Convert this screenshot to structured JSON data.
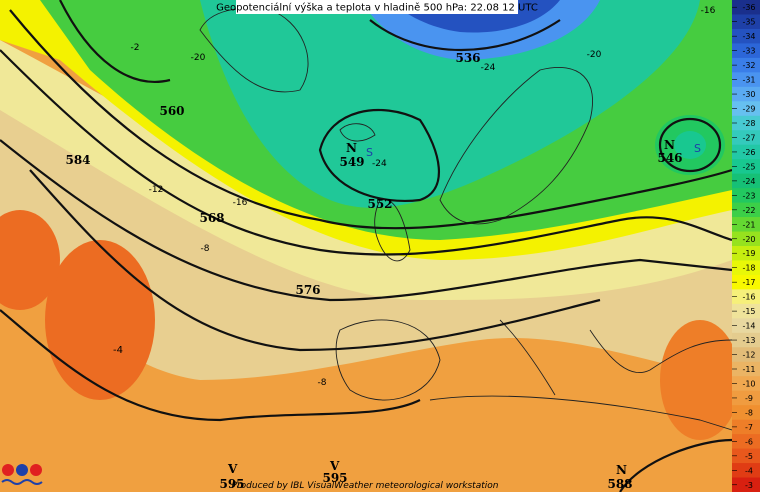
{
  "header": {
    "title": "Geopotenciální výška a teplota v hladině 500 hPa: 22.08 12 UTC"
  },
  "footer": {
    "credit": "Produced by IBL VisualWeather meteorological workstation"
  },
  "scale": {
    "labels": [
      -36,
      -35,
      -34,
      -33,
      -32,
      -31,
      -30,
      -29,
      -28,
      -27,
      -26,
      -25,
      -24,
      -23,
      -22,
      -21,
      -20,
      -19,
      -18,
      -17,
      -16,
      -15,
      -14,
      -13,
      -12,
      -11,
      -10,
      -9,
      -8,
      -7,
      -6,
      -5,
      -4,
      -3
    ],
    "colors": [
      "#1a2f8c",
      "#1e40a8",
      "#2452c0",
      "#2c66d8",
      "#3a7ee8",
      "#4a94f0",
      "#5aaaf2",
      "#66c0f0",
      "#48cad2",
      "#34cabc",
      "#22c8a6",
      "#18c890",
      "#16c076",
      "#22c860",
      "#3ccf48",
      "#64d832",
      "#96e21e",
      "#c6ee10",
      "#e8f808",
      "#f8f800",
      "#f6f07a",
      "#efe39a",
      "#e8d8a0",
      "#e4cc8e",
      "#e2bc78",
      "#ebb464",
      "#f0a850",
      "#f09c40",
      "#f09030",
      "#ee7e28",
      "#ec6c22",
      "#e8581c",
      "#e03c14",
      "#d82010"
    ]
  },
  "map": {
    "contours": [
      "560",
      "584",
      "568",
      "576",
      "549",
      "536",
      "546",
      "552",
      "595",
      "595",
      "588"
    ],
    "temps": [
      "-24",
      "-4",
      "-20",
      "-12",
      "-16",
      "-8",
      "-8",
      "-24",
      "-20",
      "-16",
      "-2"
    ],
    "centers": [
      "N",
      "N",
      "V",
      "V",
      "N"
    ],
    "lows": [
      "S",
      "S"
    ]
  }
}
